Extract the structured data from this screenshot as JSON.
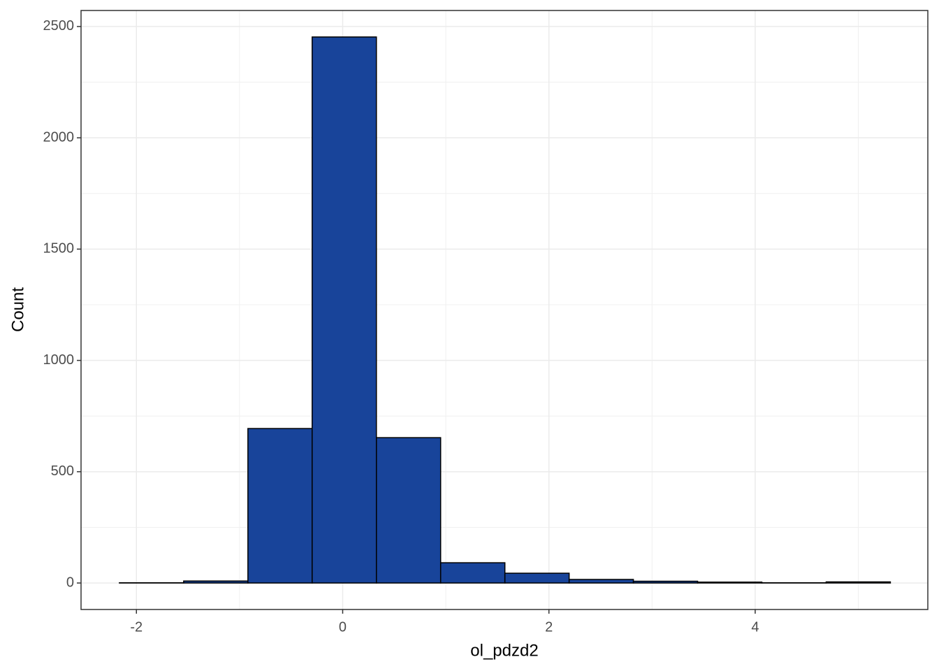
{
  "chart_data": {
    "type": "histogram",
    "x_label": "ol_pdzd2",
    "y_label": "Count",
    "bins": [
      -2.165,
      -1.542,
      -0.919,
      -0.296,
      0.327,
      0.95,
      1.573,
      2.196,
      2.819,
      3.442,
      4.065,
      4.688,
      5.311
    ],
    "values": [
      1,
      9,
      694,
      2453,
      653,
      91,
      44,
      16,
      8,
      4,
      1,
      5
    ],
    "color": "#18449a",
    "edge_color": "#000000",
    "xlim": [
      -2.537,
      5.674
    ],
    "ylim": [
      -119,
      2572
    ],
    "xticks": [
      -2,
      0,
      2,
      4
    ],
    "yticks": [
      0,
      500,
      1000,
      1500,
      2000,
      2500
    ],
    "grid": true
  }
}
